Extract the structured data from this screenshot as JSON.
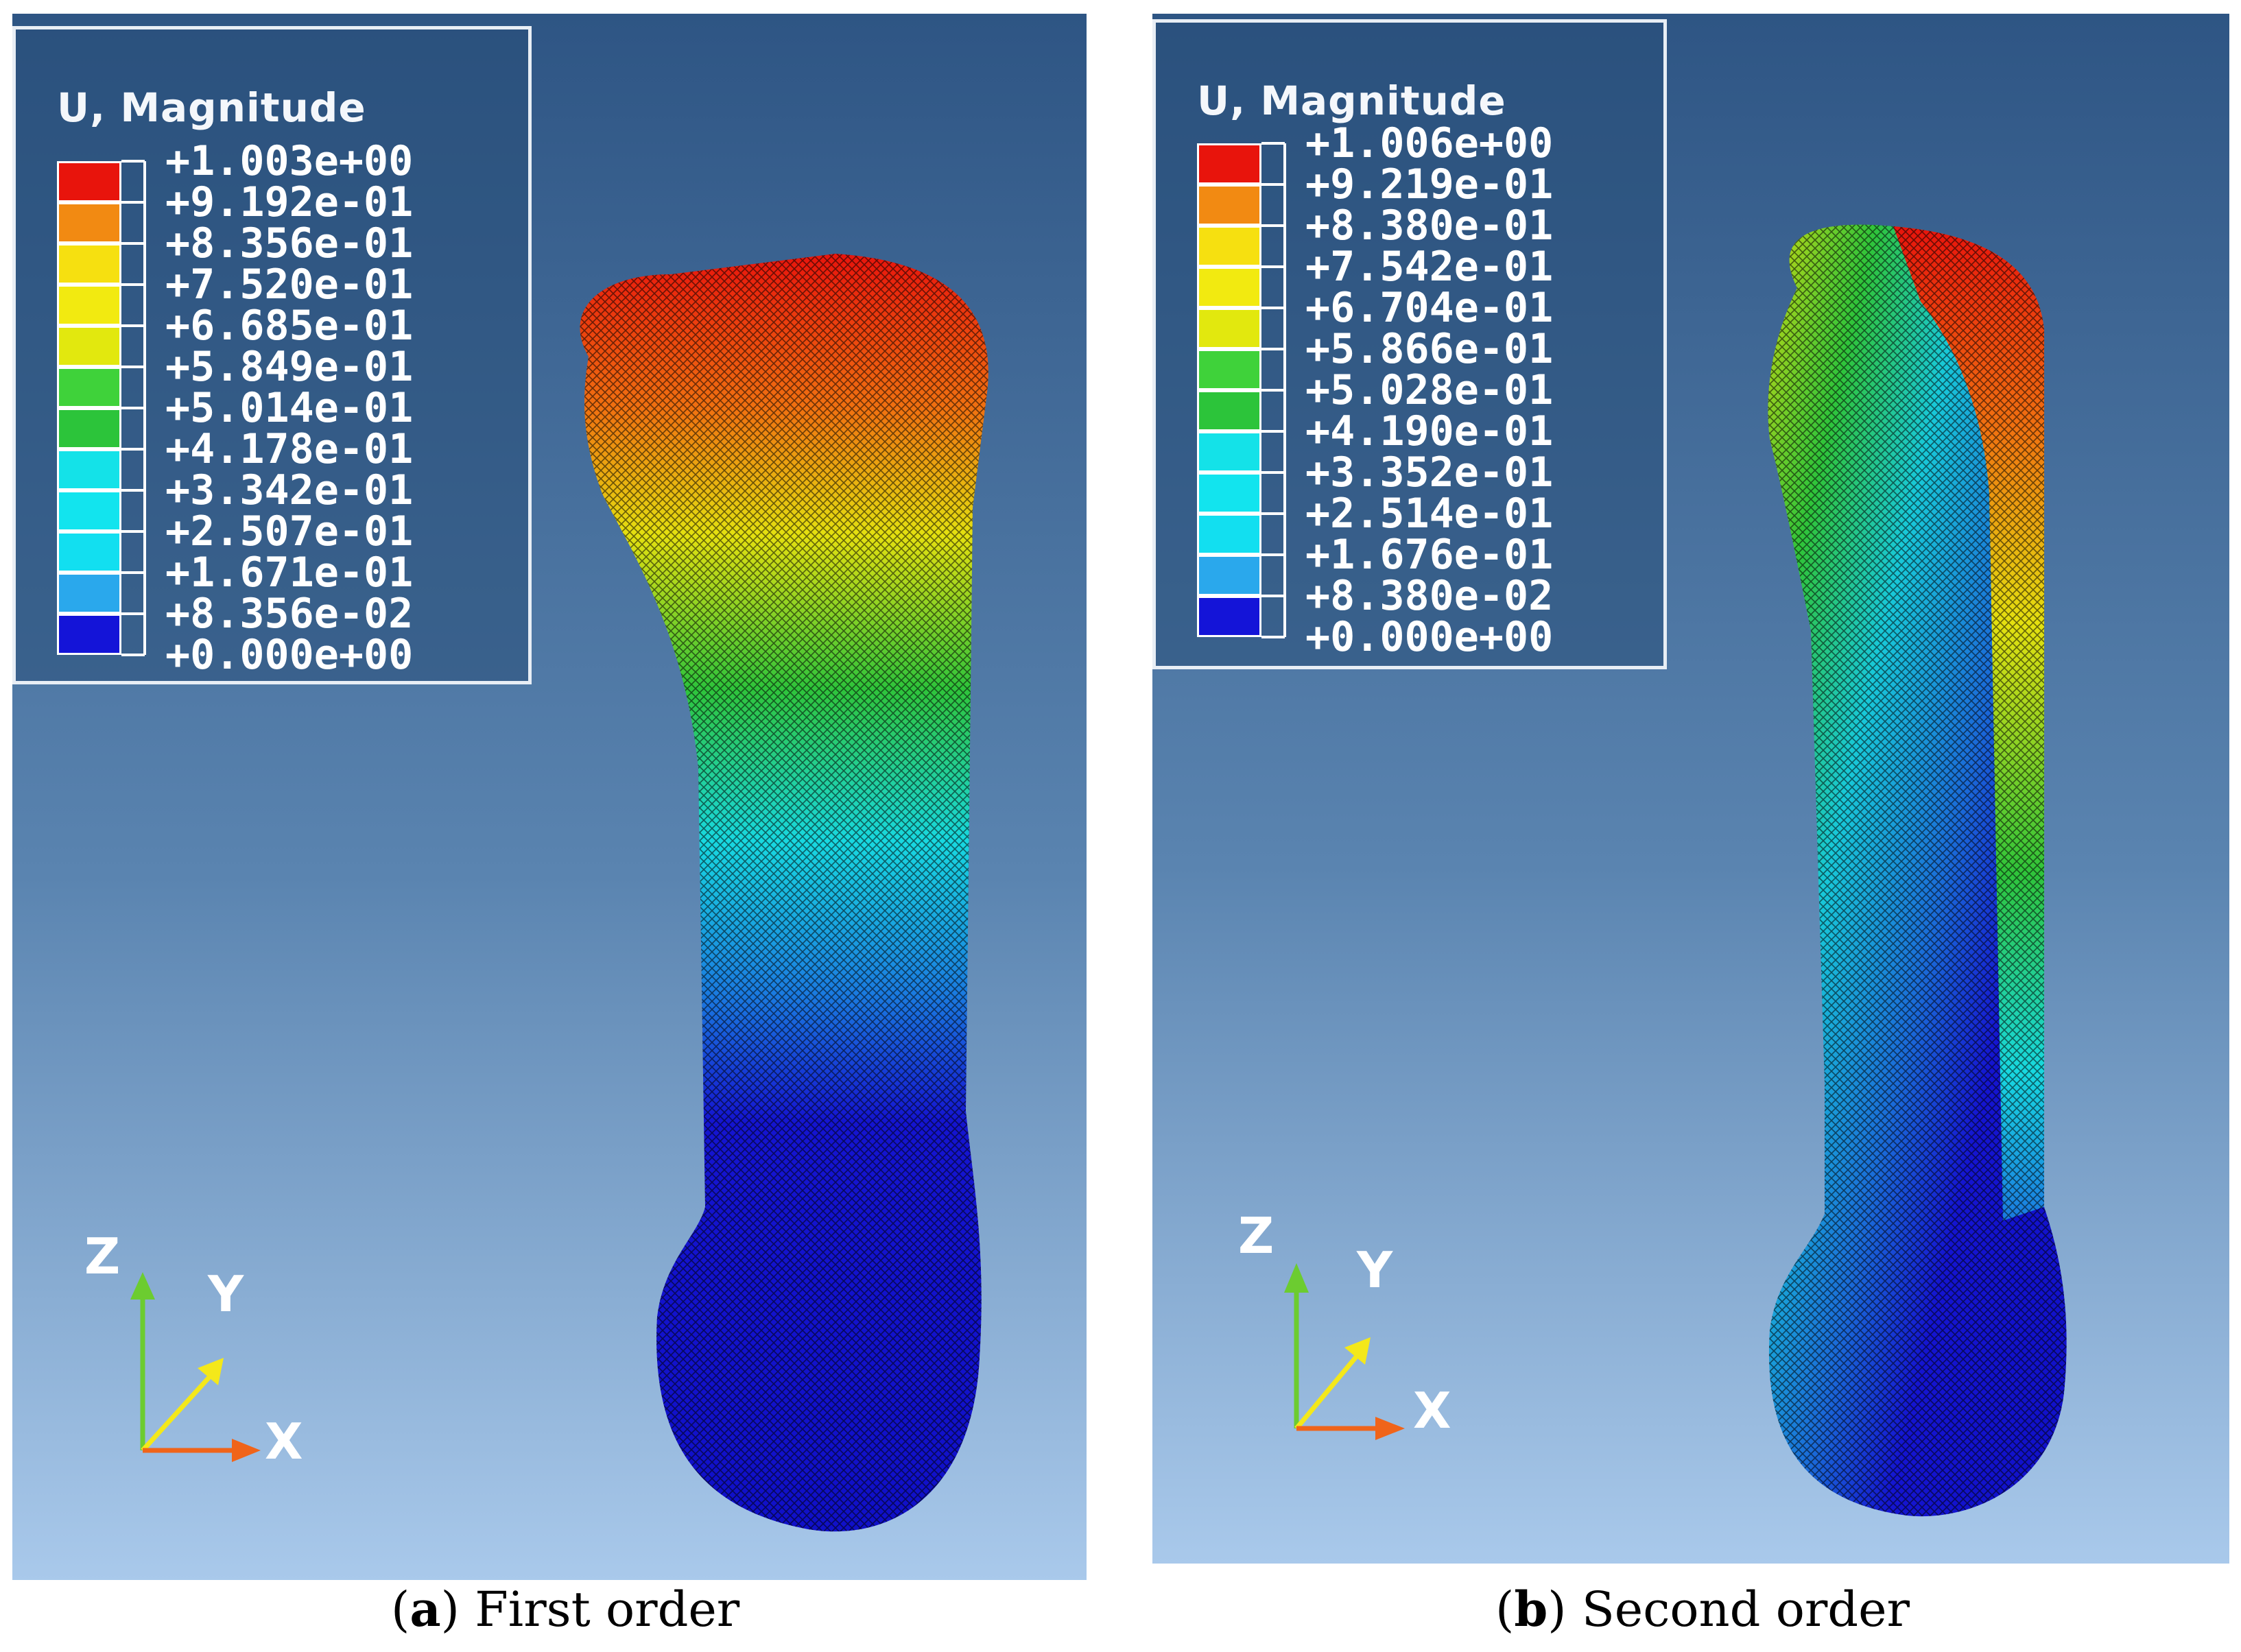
{
  "panels": [
    {
      "legend": {
        "title": "U, Magnitude",
        "values": [
          "+1.003e+00",
          "+9.192e-01",
          "+8.356e-01",
          "+7.520e-01",
          "+6.685e-01",
          "+5.849e-01",
          "+5.014e-01",
          "+4.178e-01",
          "+3.342e-01",
          "+2.507e-01",
          "+1.671e-01",
          "+8.356e-02",
          "+0.000e+00"
        ],
        "colors": [
          "#e8140c",
          "#f28a12",
          "#f6e010",
          "#f2ea10",
          "#e2e80e",
          "#3fd23a",
          "#2cc43a",
          "#14e2e8",
          "#12e4ee",
          "#12dff0",
          "#2aa8ec",
          "#1414d8"
        ]
      },
      "axes": {
        "z": "Z",
        "y": "Y",
        "x": "X"
      },
      "caption": {
        "letter": "a",
        "text": " First order"
      }
    },
    {
      "legend": {
        "title": "U, Magnitude",
        "values": [
          "+1.006e+00",
          "+9.219e-01",
          "+8.380e-01",
          "+7.542e-01",
          "+6.704e-01",
          "+5.866e-01",
          "+5.028e-01",
          "+4.190e-01",
          "+3.352e-01",
          "+2.514e-01",
          "+1.676e-01",
          "+8.380e-02",
          "+0.000e+00"
        ],
        "colors": [
          "#e8140c",
          "#f28a12",
          "#f6e010",
          "#f2ea10",
          "#e2e80e",
          "#3fd23a",
          "#2cc43a",
          "#14e2e8",
          "#12e4ee",
          "#12dff0",
          "#2aa8ec",
          "#1414d8"
        ]
      },
      "axes": {
        "z": "Z",
        "y": "Y",
        "x": "X"
      },
      "caption": {
        "letter": "b",
        "text": " Second order"
      }
    }
  ],
  "colors": {
    "background_top": "#2e5584",
    "background_bottom": "#a8c8ea"
  }
}
